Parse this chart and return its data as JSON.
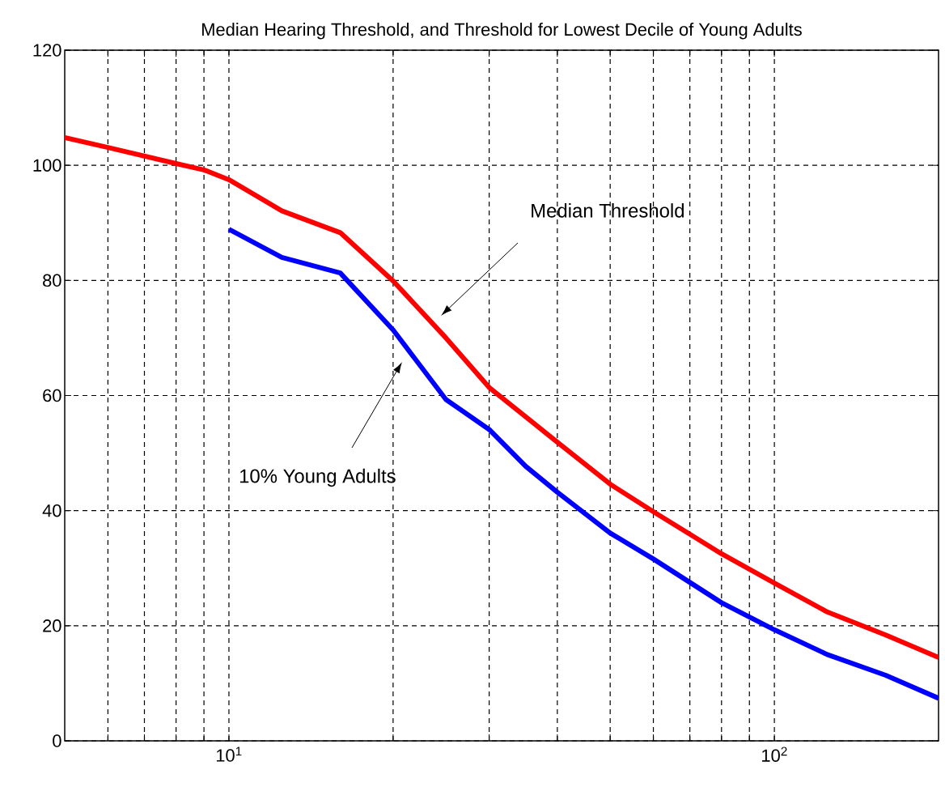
{
  "chart_data": {
    "type": "line",
    "title": "Median Hearing Threshold, and Threshold for Lowest Decile of Young Adults",
    "log": "x",
    "grid": true,
    "line_style": "solid",
    "xlim": [
      5,
      200
    ],
    "ylim": [
      0,
      120
    ],
    "xticks": [
      {
        "value": 6,
        "label": null
      },
      {
        "value": 7,
        "label": null
      },
      {
        "value": 8,
        "label": null
      },
      {
        "value": 9,
        "label": null
      },
      {
        "value": 10,
        "label": "10$^{1}$"
      },
      {
        "value": 20,
        "label": null
      },
      {
        "value": 30,
        "label": null
      },
      {
        "value": 40,
        "label": null
      },
      {
        "value": 50,
        "label": null
      },
      {
        "value": 60,
        "label": null
      },
      {
        "value": 70,
        "label": null
      },
      {
        "value": 80,
        "label": null
      },
      {
        "value": 90,
        "label": null
      },
      {
        "value": 100,
        "label": "10$^{2}$"
      }
    ],
    "yticks": [
      0,
      20,
      40,
      60,
      80,
      100,
      120
    ],
    "series": [
      {
        "color": "#ff0000",
        "x": [
          5,
          6,
          8,
          9,
          10,
          12.5,
          16,
          20,
          25,
          30,
          40,
          50,
          60,
          70,
          80,
          100,
          125,
          160,
          200
        ],
        "values": [
          104.8,
          103.1,
          100.3,
          99.2,
          97.5,
          92.1,
          88.3,
          79.9,
          70,
          61.4,
          51.9,
          44.6,
          39.8,
          35.9,
          32.5,
          27.4,
          22.4,
          18.4,
          14.5
        ]
      },
      {
        "color": "#0000ff",
        "x": [
          10,
          12.5,
          16,
          20,
          25,
          30,
          35,
          40,
          50,
          60,
          80,
          100,
          125,
          160,
          200
        ],
        "values": [
          88.9,
          84,
          81.3,
          71.4,
          59.3,
          54.1,
          47.7,
          43.2,
          36.1,
          31.6,
          24,
          19.3,
          15,
          11.4,
          7.4
        ]
      }
    ],
    "annotations": [
      "Median Threshold",
      "10% Young Adults"
    ]
  }
}
